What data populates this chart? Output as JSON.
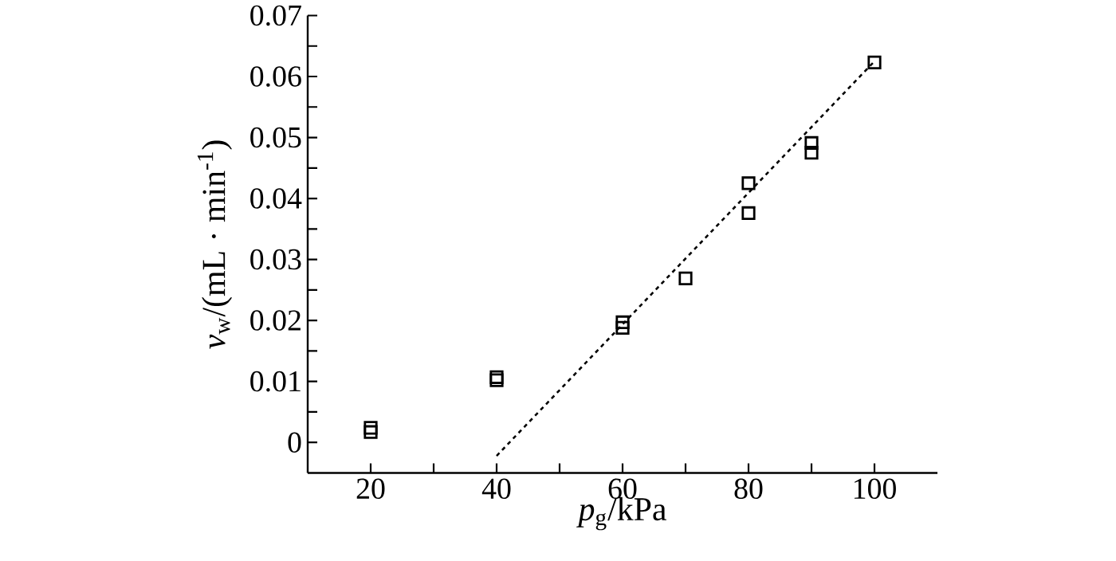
{
  "chart_data": {
    "type": "scatter",
    "xlabel": "*p*$_{g}$/kPa",
    "ylabel": "*v*$_{w}$/(mL · min$^{-1}$)",
    "xlim": [
      10,
      110
    ],
    "ylim": [
      -0.005,
      0.07
    ],
    "xticks": [
      20,
      {
        "value": 30,
        "label": null
      },
      40,
      {
        "value": 50,
        "label": null
      },
      60,
      {
        "value": 70,
        "label": null
      },
      80,
      {
        "value": 90,
        "label": null
      },
      100
    ],
    "yticks": [
      0,
      {
        "value": 0.005,
        "label": null
      },
      0.01,
      {
        "value": 0.015,
        "label": null
      },
      0.02,
      {
        "value": 0.025,
        "label": null
      },
      0.03,
      {
        "value": 0.035,
        "label": null
      },
      0.04,
      {
        "value": 0.045,
        "label": null
      },
      0.05,
      {
        "value": 0.055,
        "label": null
      },
      0.06,
      {
        "value": 0.065,
        "label": null
      },
      0.07
    ],
    "grid": false,
    "marker": "square",
    "series": [
      {
        "color": "#000000",
        "x": [
          20,
          20,
          40,
          40,
          60,
          60,
          70,
          80,
          80,
          90,
          90,
          100
        ],
        "values": [
          0.0024,
          0.0017,
          0.0107,
          0.0102,
          0.0197,
          0.0188,
          0.0269,
          0.0425,
          0.0376,
          0.0491,
          0.0475,
          0.0623
        ]
      },
      {
        "type": "line",
        "color": "#000000",
        "line_style": "dotted",
        "marker": "none",
        "x": [
          40,
          100
        ],
        "values": [
          -0.0022,
          0.0625
        ]
      }
    ]
  }
}
